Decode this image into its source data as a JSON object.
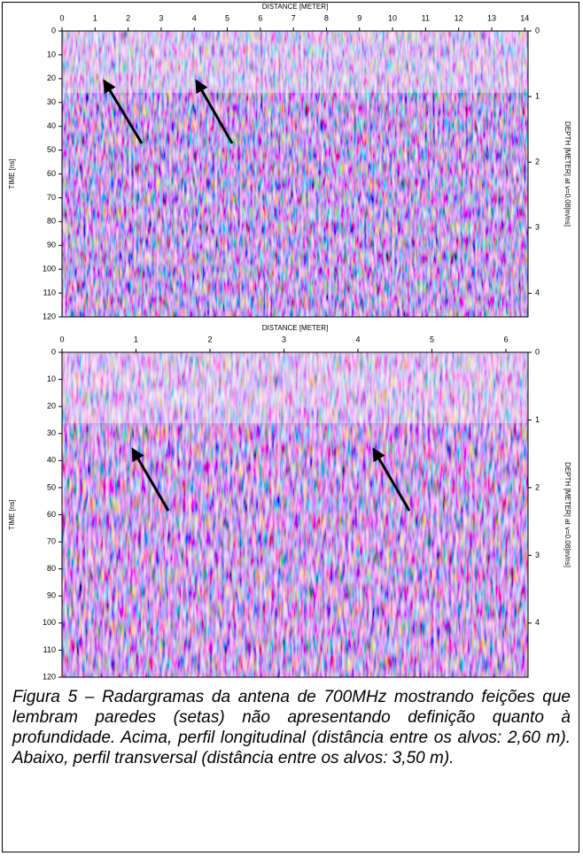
{
  "figure": {
    "panels": [
      {
        "x_axis_label": "DISTANCE [METER]",
        "y_axis_label": "TIME [ns]",
        "y2_axis_label": "DEPTH [METER] at v=0.08[m/ns]",
        "xlim": [
          0,
          14.1
        ],
        "xticks": [
          0,
          1,
          2,
          3,
          4,
          5,
          6,
          7,
          8,
          9,
          10,
          11,
          12,
          13,
          14
        ],
        "ylim": [
          0,
          120
        ],
        "yticks": [
          0,
          10,
          20,
          30,
          40,
          50,
          60,
          70,
          80,
          90,
          100,
          110,
          120
        ],
        "y2lim": [
          0,
          4.36
        ],
        "y2ticks": [
          0,
          1,
          2,
          3,
          4
        ]
      },
      {
        "x_axis_label": "DISTANCE [METER]",
        "y_axis_label": "TIME [ns]",
        "y2_axis_label": "DEPTH [METER] at v=0.08[m/ns]",
        "xlim": [
          0,
          6.3
        ],
        "xticks": [
          0,
          1,
          2,
          3,
          4,
          5,
          6
        ],
        "ylim": [
          0,
          120
        ],
        "yticks": [
          0,
          10,
          20,
          30,
          40,
          50,
          60,
          70,
          80,
          90,
          100,
          110,
          120
        ],
        "y2lim": [
          0,
          4.8
        ],
        "y2ticks": [
          0,
          1,
          2,
          3,
          4
        ]
      }
    ],
    "caption": "Figura 5 – Radargramas da antena de 700MHz mostrando feições que lembram paredes (setas) não apresentando definição quanto à profundidade. Acima, perfil longitudinal (distância entre os alvos: 2,60 m). Abaixo, perfil transversal (distância entre os alvos: 3,50 m)."
  }
}
